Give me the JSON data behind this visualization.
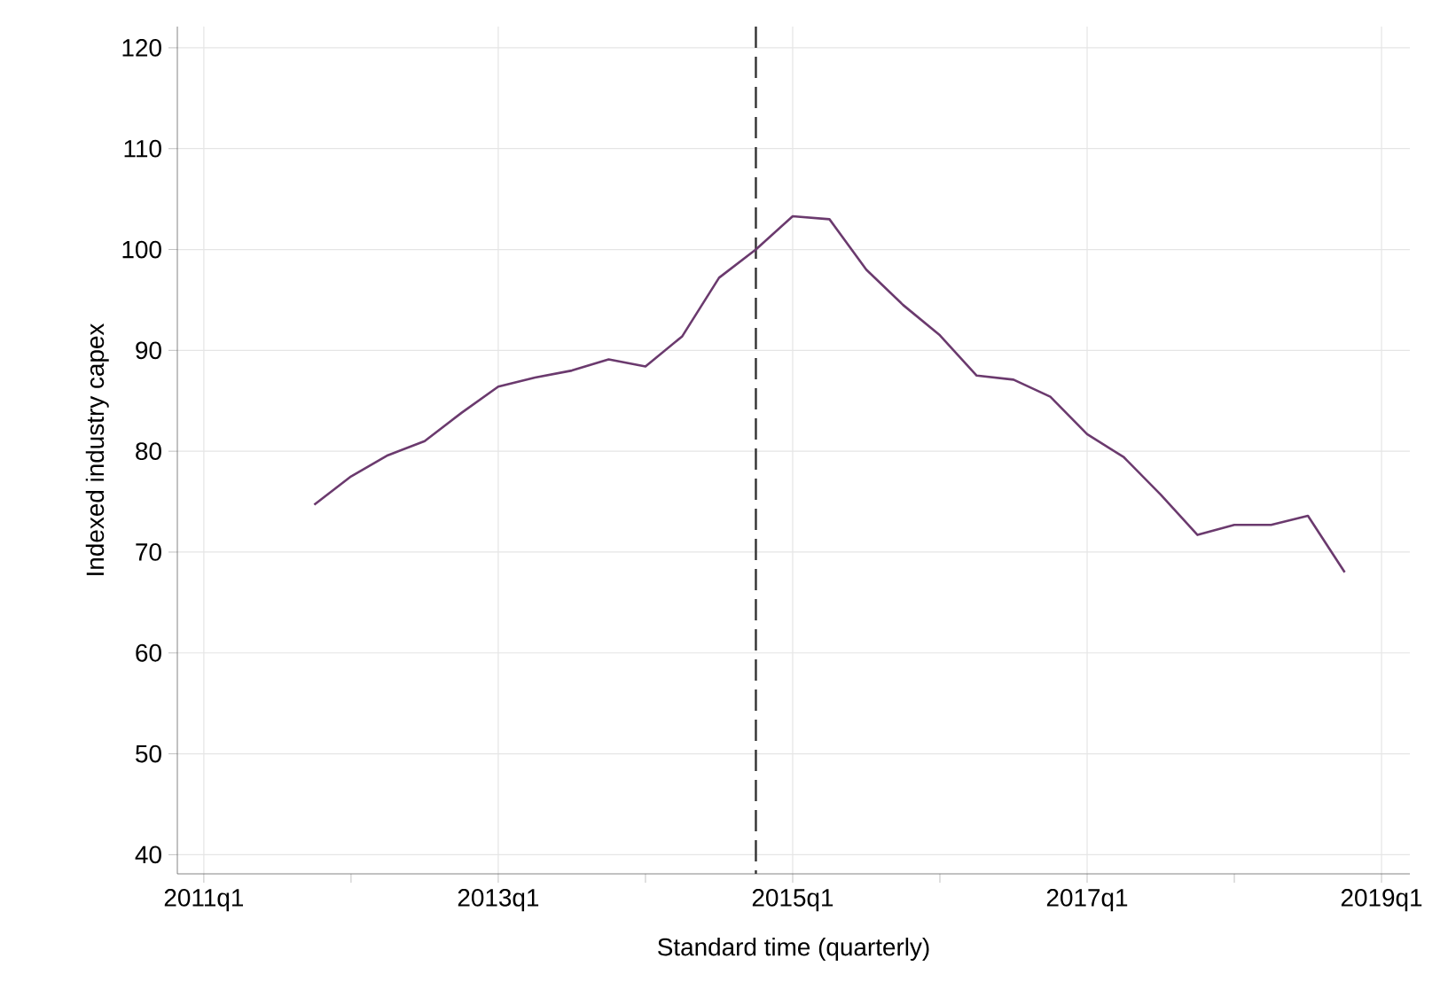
{
  "chart_data": {
    "type": "line",
    "xlabel": "Standard time (quarterly)",
    "ylabel": "Indexed industry capex",
    "categories": [
      "2011q1",
      null,
      null,
      null,
      null,
      null,
      null,
      null,
      "2013q1",
      null,
      null,
      null,
      null,
      null,
      null,
      null,
      "2015q1",
      null,
      null,
      null,
      null,
      null,
      null,
      null,
      "2017q1",
      null,
      null,
      null,
      null,
      null,
      null,
      null,
      "2019q1"
    ],
    "series": [
      {
        "color": "#6b3a6e",
        "values": [
          null,
          null,
          null,
          74.7,
          77.5,
          79.6,
          81.0,
          83.8,
          86.4,
          87.3,
          88.0,
          89.1,
          88.4,
          91.4,
          97.2,
          100.0,
          103.3,
          103.0,
          98.0,
          94.5,
          91.5,
          87.5,
          87.1,
          85.4,
          81.7,
          79.4,
          75.7,
          71.7,
          72.7,
          72.7,
          73.6,
          68.0,
          null
        ]
      }
    ],
    "ylim": [
      38.1,
      122.1
    ],
    "yticks": [
      40,
      50,
      60,
      70,
      80,
      90,
      100,
      110,
      120
    ],
    "grid": true,
    "marker": "none",
    "line_style": "solid"
  }
}
